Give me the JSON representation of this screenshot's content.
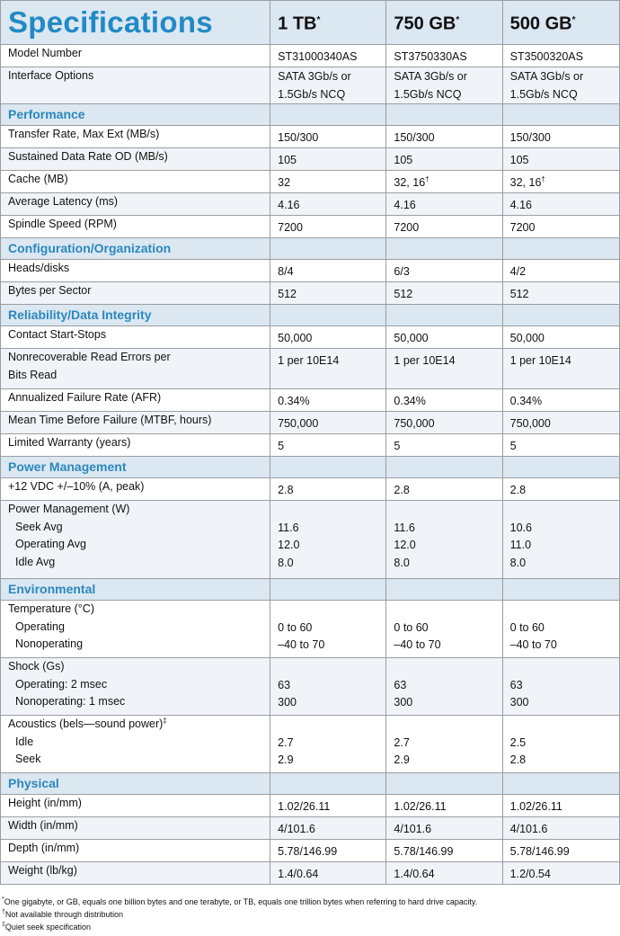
{
  "title": "Specifications",
  "columns": [
    {
      "label": "1 TB",
      "mark": "*"
    },
    {
      "label": "750 GB",
      "mark": "*"
    },
    {
      "label": "500 GB",
      "mark": "*"
    }
  ],
  "rows": [
    {
      "kind": "row",
      "label": [
        "Model Number"
      ],
      "values": [
        [
          "ST31000340AS"
        ],
        [
          "ST3750330AS"
        ],
        [
          "ST3500320AS"
        ]
      ]
    },
    {
      "kind": "row",
      "label": [
        "Interface Options"
      ],
      "values": [
        [
          "SATA 3Gb/s or",
          "1.5Gb/s NCQ"
        ],
        [
          "SATA 3Gb/s or",
          "1.5Gb/s NCQ"
        ],
        [
          "SATA 3Gb/s or",
          "1.5Gb/s NCQ"
        ]
      ]
    },
    {
      "kind": "section",
      "label": "Performance"
    },
    {
      "kind": "row",
      "label": [
        "Transfer Rate, Max Ext (MB/s)"
      ],
      "values": [
        [
          "150/300"
        ],
        [
          "150/300"
        ],
        [
          "150/300"
        ]
      ]
    },
    {
      "kind": "row",
      "label": [
        "Sustained Data Rate OD (MB/s)"
      ],
      "values": [
        [
          "105"
        ],
        [
          "105"
        ],
        [
          "105"
        ]
      ]
    },
    {
      "kind": "row",
      "label": [
        "Cache (MB)"
      ],
      "values": [
        [
          "32"
        ],
        [
          "32, 16"
        ],
        [
          "32, 16"
        ]
      ],
      "marks": [
        "",
        "†",
        "†"
      ]
    },
    {
      "kind": "row",
      "label": [
        "Average Latency (ms)"
      ],
      "values": [
        [
          "4.16"
        ],
        [
          "4.16"
        ],
        [
          "4.16"
        ]
      ]
    },
    {
      "kind": "row",
      "label": [
        "Spindle Speed (RPM)"
      ],
      "values": [
        [
          "7200"
        ],
        [
          "7200"
        ],
        [
          "7200"
        ]
      ]
    },
    {
      "kind": "section",
      "label": "Configuration/Organization"
    },
    {
      "kind": "row",
      "label": [
        "Heads/disks"
      ],
      "values": [
        [
          "8/4"
        ],
        [
          "6/3"
        ],
        [
          "4/2"
        ]
      ]
    },
    {
      "kind": "row",
      "label": [
        "Bytes per Sector"
      ],
      "values": [
        [
          "512"
        ],
        [
          "512"
        ],
        [
          "512"
        ]
      ]
    },
    {
      "kind": "section",
      "label": "Reliability/Data Integrity"
    },
    {
      "kind": "row",
      "label": [
        "Contact Start-Stops"
      ],
      "values": [
        [
          "50,000"
        ],
        [
          "50,000"
        ],
        [
          "50,000"
        ]
      ]
    },
    {
      "kind": "row",
      "label": [
        "Nonrecoverable Read Errors per",
        "Bits Read"
      ],
      "values": [
        [
          "1 per 10E14"
        ],
        [
          "1 per 10E14"
        ],
        [
          "1 per 10E14"
        ]
      ]
    },
    {
      "kind": "row",
      "label": [
        "Annualized Failure Rate (AFR)"
      ],
      "values": [
        [
          "0.34%"
        ],
        [
          "0.34%"
        ],
        [
          "0.34%"
        ]
      ]
    },
    {
      "kind": "row",
      "label": [
        "Mean Time Before Failure (MTBF, hours)"
      ],
      "values": [
        [
          "750,000"
        ],
        [
          "750,000"
        ],
        [
          "750,000"
        ]
      ]
    },
    {
      "kind": "row",
      "label": [
        "Limited Warranty (years)"
      ],
      "values": [
        [
          "5"
        ],
        [
          "5"
        ],
        [
          "5"
        ]
      ]
    },
    {
      "kind": "section",
      "label": "Power Management"
    },
    {
      "kind": "row",
      "label": [
        "+12 VDC +/–10% (A, peak)"
      ],
      "values": [
        [
          "2.8"
        ],
        [
          "2.8"
        ],
        [
          "2.8"
        ]
      ]
    },
    {
      "kind": "row",
      "label": [
        "Power Management (W)",
        "Seek Avg",
        "Operating Avg",
        "Idle Avg"
      ],
      "values": [
        [
          "",
          "11.6",
          "12.0",
          "8.0"
        ],
        [
          "",
          "11.6",
          "12.0",
          "8.0"
        ],
        [
          "",
          "10.6",
          "11.0",
          "8.0"
        ]
      ]
    },
    {
      "kind": "section",
      "label": "Environmental"
    },
    {
      "kind": "row",
      "label": [
        "Temperature (°C)",
        "Operating",
        "Nonoperating"
      ],
      "values": [
        [
          "",
          "0 to 60",
          "–40 to 70"
        ],
        [
          "",
          "0 to 60",
          "–40 to 70"
        ],
        [
          "",
          "0 to 60",
          "–40 to 70"
        ]
      ]
    },
    {
      "kind": "row",
      "label": [
        "Shock (Gs)",
        "Operating: 2 msec",
        "Nonoperating: 1 msec"
      ],
      "values": [
        [
          "",
          "63",
          "300"
        ],
        [
          "",
          "63",
          "300"
        ],
        [
          "",
          "63",
          "300"
        ]
      ]
    },
    {
      "kind": "row",
      "label": [
        "Acoustics (bels—sound power)",
        "Idle",
        "Seek"
      ],
      "labelMark": "‡",
      "values": [
        [
          "",
          "2.7",
          "2.9"
        ],
        [
          "",
          "2.7",
          "2.9"
        ],
        [
          "",
          "2.5",
          "2.8"
        ]
      ]
    },
    {
      "kind": "section",
      "label": "Physical"
    },
    {
      "kind": "row",
      "label": [
        "Height (in/mm)"
      ],
      "values": [
        [
          "1.02/26.11"
        ],
        [
          "1.02/26.11"
        ],
        [
          "1.02/26.11"
        ]
      ]
    },
    {
      "kind": "row",
      "label": [
        "Width (in/mm)"
      ],
      "values": [
        [
          "4/101.6"
        ],
        [
          "4/101.6"
        ],
        [
          "4/101.6"
        ]
      ]
    },
    {
      "kind": "row",
      "label": [
        "Depth (in/mm)"
      ],
      "values": [
        [
          "5.78/146.99"
        ],
        [
          "5.78/146.99"
        ],
        [
          "5.78/146.99"
        ]
      ]
    },
    {
      "kind": "row",
      "label": [
        "Weight (lb/kg)"
      ],
      "values": [
        [
          "1.4/0.64"
        ],
        [
          "1.4/0.64"
        ],
        [
          "1.2/0.54"
        ]
      ]
    }
  ],
  "footnotes": [
    {
      "mark": "*",
      "text": "One gigabyte, or GB, equals one billion bytes and one terabyte, or TB, equals one trillion bytes when referring to hard drive capacity."
    },
    {
      "mark": "†",
      "text": "Not available through distribution"
    },
    {
      "mark": "‡",
      "text": "Quiet seek specification"
    }
  ]
}
